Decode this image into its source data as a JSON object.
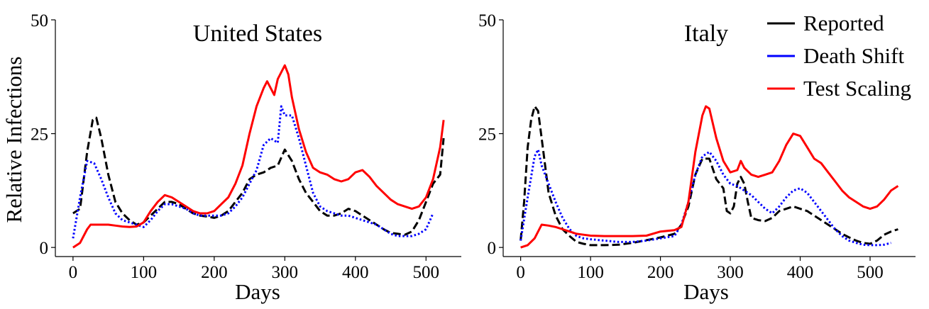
{
  "chart_data": [
    {
      "type": "line",
      "title": "United States",
      "xlabel": "Days",
      "ylabel": "Relative Infections",
      "xlim": [
        -25,
        550
      ],
      "ylim": [
        -2,
        50
      ],
      "xticks": [
        0,
        100,
        200,
        300,
        400,
        500
      ],
      "yticks": [
        0,
        25,
        50
      ],
      "legend": false,
      "series": [
        {
          "name": "Reported",
          "color": "#000000",
          "style": "dashed",
          "x": [
            0,
            10,
            20,
            28,
            33,
            40,
            50,
            60,
            70,
            80,
            90,
            100,
            110,
            120,
            130,
            140,
            150,
            160,
            170,
            180,
            190,
            200,
            210,
            220,
            230,
            240,
            250,
            260,
            270,
            280,
            290,
            300,
            310,
            320,
            330,
            340,
            350,
            360,
            370,
            380,
            390,
            400,
            410,
            420,
            430,
            440,
            450,
            460,
            470,
            480,
            490,
            500,
            510,
            520,
            525
          ],
          "y": [
            7.5,
            8.5,
            21,
            28,
            28.5,
            24,
            16,
            10,
            7.5,
            6,
            5,
            5.5,
            7,
            8.5,
            10,
            10,
            9.5,
            8.5,
            7.5,
            7,
            6.8,
            6.5,
            7,
            8,
            10,
            12,
            15,
            16,
            16.5,
            17.5,
            18,
            21.5,
            19,
            15,
            12,
            10,
            8,
            7,
            7,
            7.5,
            8.5,
            8,
            7,
            6,
            5,
            4,
            3.2,
            3,
            2.8,
            3.5,
            6,
            10,
            14,
            16,
            24
          ]
        },
        {
          "name": "Death Shift",
          "color": "#0000ff",
          "style": "dotted",
          "x": [
            0,
            10,
            20,
            30,
            40,
            50,
            60,
            70,
            80,
            90,
            100,
            110,
            120,
            130,
            140,
            150,
            160,
            170,
            180,
            190,
            200,
            210,
            220,
            230,
            240,
            250,
            260,
            270,
            280,
            290,
            295,
            300,
            310,
            320,
            330,
            340,
            350,
            360,
            370,
            380,
            390,
            400,
            410,
            420,
            430,
            440,
            450,
            460,
            470,
            480,
            490,
            500,
            510
          ],
          "y": [
            2,
            11,
            19,
            18.5,
            15,
            11,
            7.5,
            6,
            5.5,
            5,
            4.5,
            6,
            8,
            9.5,
            9.5,
            9,
            8.5,
            7.5,
            7,
            7,
            7,
            7,
            7.5,
            9,
            11,
            14,
            17,
            22.5,
            24,
            23,
            31,
            29,
            29,
            24,
            18,
            12,
            9,
            8,
            7.5,
            7,
            7,
            6.5,
            6,
            5.5,
            5,
            4,
            3,
            2.5,
            2.5,
            2.5,
            3,
            4,
            7.5
          ]
        },
        {
          "name": "Test Scaling",
          "color": "#ff0000",
          "style": "solid",
          "x": [
            0,
            10,
            20,
            25,
            30,
            40,
            50,
            60,
            70,
            80,
            90,
            100,
            110,
            120,
            130,
            140,
            150,
            160,
            170,
            180,
            190,
            200,
            210,
            220,
            230,
            240,
            250,
            260,
            270,
            275,
            280,
            285,
            290,
            300,
            305,
            310,
            320,
            330,
            340,
            350,
            360,
            370,
            380,
            390,
            400,
            410,
            420,
            430,
            440,
            450,
            460,
            470,
            480,
            490,
            500,
            510,
            520,
            525
          ],
          "y": [
            0,
            1,
            4,
            5,
            5,
            5,
            5,
            4.8,
            4.6,
            4.5,
            4.6,
            5.5,
            8,
            10,
            11.5,
            11,
            10,
            9,
            8,
            7.5,
            7.5,
            8,
            9.5,
            11,
            14,
            18,
            25,
            31,
            35,
            36.5,
            35,
            33.5,
            37,
            40,
            38,
            33,
            26,
            21,
            17.5,
            16.5,
            16,
            15,
            14.5,
            15,
            16.5,
            17,
            15.5,
            13.5,
            12,
            10.5,
            9.5,
            9,
            8.5,
            9,
            11,
            15,
            22,
            28
          ]
        }
      ]
    },
    {
      "type": "line",
      "title": "Italy",
      "xlabel": "Days",
      "ylabel": "",
      "xlim": [
        -25,
        565
      ],
      "ylim": [
        -2,
        50
      ],
      "xticks": [
        0,
        100,
        200,
        300,
        400,
        500
      ],
      "yticks": [
        0,
        25,
        50
      ],
      "legend": true,
      "legend_position": "top-right",
      "series": [
        {
          "name": "Reported",
          "color": "#000000",
          "style": "dashed",
          "x": [
            0,
            5,
            10,
            15,
            20,
            25,
            30,
            35,
            40,
            50,
            60,
            70,
            80,
            90,
            100,
            110,
            120,
            140,
            160,
            180,
            200,
            220,
            230,
            240,
            250,
            260,
            270,
            280,
            290,
            295,
            300,
            305,
            310,
            315,
            320,
            325,
            330,
            340,
            350,
            360,
            370,
            380,
            390,
            400,
            410,
            420,
            430,
            440,
            450,
            460,
            470,
            480,
            490,
            500,
            510,
            520,
            530,
            540
          ],
          "y": [
            1.5,
            10,
            22,
            28,
            31,
            30,
            24,
            18,
            12,
            7,
            4,
            2.5,
            1.2,
            0.8,
            0.5,
            0.5,
            0.5,
            0.6,
            1,
            1.6,
            2.2,
            3,
            5,
            9,
            16,
            19.5,
            19.5,
            15,
            13,
            8,
            7.5,
            9,
            14,
            15.5,
            14,
            10,
            6.5,
            6,
            5.8,
            6.5,
            8,
            8.5,
            9,
            8.5,
            8,
            7,
            6,
            5,
            4,
            3,
            2.2,
            1.5,
            1,
            0.8,
            1.5,
            2.8,
            3.5,
            4
          ]
        },
        {
          "name": "Death Shift",
          "color": "#0000ff",
          "style": "dotted",
          "x": [
            0,
            10,
            20,
            25,
            30,
            40,
            50,
            60,
            70,
            80,
            90,
            100,
            120,
            140,
            160,
            180,
            200,
            220,
            230,
            240,
            250,
            260,
            270,
            280,
            290,
            300,
            310,
            320,
            330,
            340,
            350,
            360,
            370,
            380,
            390,
            400,
            410,
            420,
            430,
            440,
            450,
            460,
            470,
            480,
            490,
            500,
            510,
            520,
            530
          ],
          "y": [
            1.5,
            11,
            20,
            21.5,
            18,
            14,
            10,
            6.5,
            4,
            2.5,
            2,
            1.8,
            1.5,
            1.2,
            1.2,
            1.5,
            2,
            2.5,
            5,
            10,
            16,
            20,
            21,
            19,
            16,
            14,
            13.5,
            12.5,
            11.5,
            10,
            8.5,
            7.5,
            9,
            11,
            12.5,
            13,
            12,
            10,
            8,
            6,
            4,
            2.5,
            1.5,
            1,
            0.6,
            0.5,
            0.5,
            0.6,
            1
          ]
        },
        {
          "name": "Test Scaling",
          "color": "#ff0000",
          "style": "solid",
          "x": [
            0,
            10,
            20,
            30,
            40,
            50,
            60,
            70,
            80,
            90,
            100,
            120,
            140,
            160,
            180,
            200,
            220,
            230,
            240,
            250,
            260,
            265,
            270,
            280,
            290,
            300,
            310,
            315,
            320,
            330,
            340,
            350,
            360,
            370,
            380,
            390,
            400,
            410,
            420,
            430,
            440,
            450,
            460,
            470,
            480,
            490,
            500,
            510,
            520,
            530,
            540
          ],
          "y": [
            0,
            0.5,
            2,
            5,
            4.8,
            4.5,
            4,
            3.5,
            3,
            2.8,
            2.6,
            2.5,
            2.5,
            2.5,
            2.6,
            3.5,
            3.8,
            4.5,
            10,
            21,
            29,
            31,
            30.5,
            24,
            19,
            16.5,
            17,
            19,
            17.5,
            16,
            15.5,
            16,
            16.5,
            19,
            22.5,
            25,
            24.5,
            22,
            19.5,
            18.5,
            16.5,
            14.5,
            12.5,
            11,
            10,
            9,
            8.5,
            9,
            10.5,
            12.5,
            13.5
          ]
        }
      ]
    }
  ]
}
